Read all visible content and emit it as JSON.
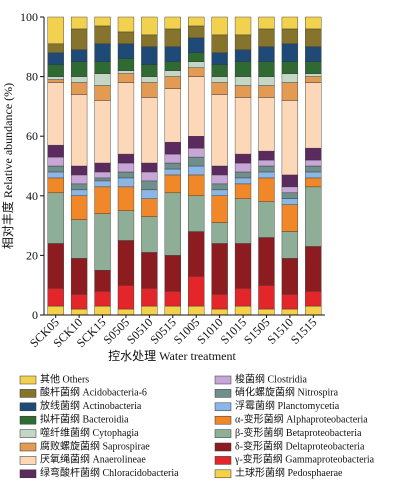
{
  "chart_data": {
    "type": "stacked-bar",
    "y_label": "相对丰度 Relative abundance (%)",
    "x_label": "控水处理 Water treatment",
    "categories": [
      "SCK05",
      "SCK10",
      "SCK15",
      "S0505",
      "S0510",
      "S0515",
      "S1005",
      "S1010",
      "S1015",
      "S1505",
      "S1510",
      "S1515"
    ],
    "ylim": [
      0,
      100
    ],
    "yticks": [
      0,
      20,
      40,
      60,
      80,
      100
    ],
    "series": [
      {
        "name": "土球形菌纲 Pedosphaerae",
        "color": "#f5d04a",
        "values": [
          3,
          2,
          3,
          2,
          3,
          3,
          3,
          2,
          3,
          2,
          2,
          3
        ]
      },
      {
        "name": "γ-变形菌纲 Gammaproteobacteria",
        "color": "#e3262a",
        "values": [
          6,
          5,
          5,
          8,
          6,
          5,
          10,
          5,
          6,
          8,
          5,
          5
        ]
      },
      {
        "name": "δ-变形菌纲 Deltaproteobacteria",
        "color": "#8c1c1f",
        "values": [
          15,
          12,
          7,
          15,
          12,
          12,
          15,
          17,
          15,
          16,
          12,
          15
        ]
      },
      {
        "name": "β-变形菌纲 Betaproteobacteria",
        "color": "#8fae98",
        "values": [
          17,
          13,
          19,
          10,
          12,
          21,
          12,
          7,
          15,
          12,
          9,
          20
        ]
      },
      {
        "name": "α-变形菌纲 Alphaproteobacteria",
        "color": "#f0882a",
        "values": [
          5,
          8,
          9,
          8,
          6,
          6,
          7,
          9,
          5,
          8,
          9,
          3
        ]
      },
      {
        "name": "浮霉菌纲 Planctomycetia",
        "color": "#8cb6e6",
        "values": [
          2,
          2,
          2,
          3,
          3,
          2,
          3,
          2,
          2,
          2,
          2,
          2
        ]
      },
      {
        "name": "硝化螺旋菌纲 Nitrospira",
        "color": "#6f8f8c",
        "values": [
          2,
          2,
          1,
          2,
          3,
          2,
          3,
          2,
          2,
          2,
          2,
          2
        ]
      },
      {
        "name": "梭菌纲 Clostridia",
        "color": "#c8a6d6",
        "values": [
          3,
          3,
          2,
          3,
          3,
          3,
          3,
          3,
          3,
          2,
          2,
          2
        ]
      },
      {
        "name": "绿弯酸杆菌纲 Chloracidobacteria",
        "color": "#5b2a5e",
        "values": [
          4,
          3,
          3,
          3,
          3,
          4,
          4,
          3,
          3,
          3,
          4,
          4
        ]
      },
      {
        "name": "厌氧绳菌纲 Anaerolineae",
        "color": "#fcd7b8",
        "values": [
          21,
          24,
          21,
          24,
          22,
          18,
          20,
          24,
          19,
          18,
          25,
          22
        ]
      },
      {
        "name": "腐败螺旋菌纲 Saprospirae",
        "color": "#e39a52",
        "values": [
          1,
          4,
          5,
          3,
          5,
          4,
          3,
          4,
          4,
          4,
          6,
          2
        ]
      },
      {
        "name": "噬纤维菌纲 Cytophagia",
        "color": "#c3d7c4",
        "values": [
          1,
          2,
          4,
          1,
          2,
          2,
          2,
          2,
          3,
          3,
          3,
          1
        ]
      },
      {
        "name": "拟杆菌纲 Bacteroidia",
        "color": "#2f6a32",
        "values": [
          4,
          5,
          4,
          4,
          4,
          3,
          3,
          4,
          5,
          5,
          4,
          4
        ]
      },
      {
        "name": "放线菌纲 Actinobacteria",
        "color": "#1f4a78",
        "values": [
          4,
          4,
          6,
          5,
          6,
          5,
          5,
          4,
          4,
          5,
          6,
          5
        ]
      },
      {
        "name": "酸杆菌纲 Acidobacteria-6",
        "color": "#86742c",
        "values": [
          3,
          7,
          6,
          4,
          4,
          6,
          4,
          6,
          5,
          6,
          5,
          6
        ]
      },
      {
        "name": "其他 Others",
        "color": "#f1d14e",
        "values": [
          9,
          4,
          3,
          5,
          6,
          4,
          3,
          6,
          6,
          4,
          4,
          4
        ]
      }
    ]
  }
}
